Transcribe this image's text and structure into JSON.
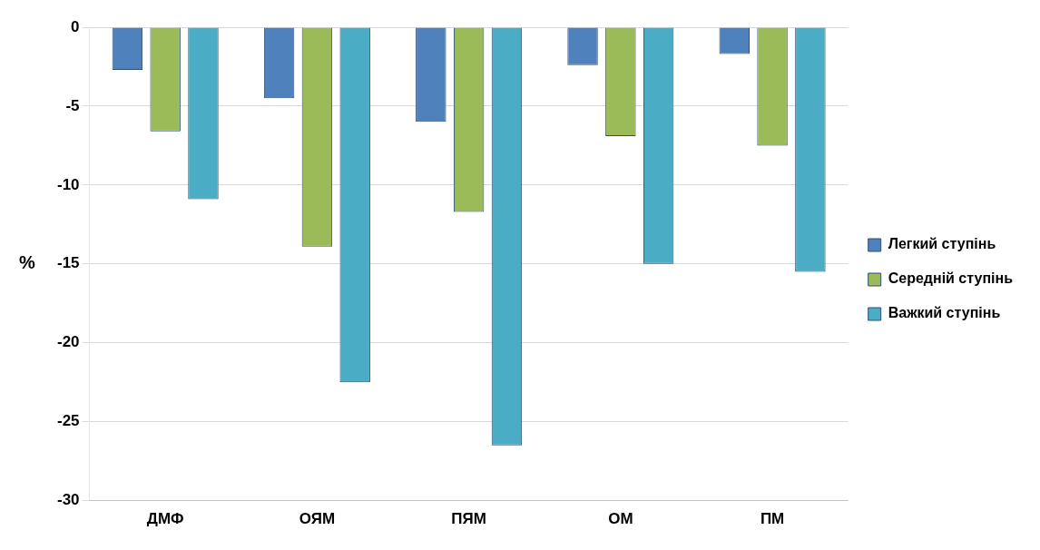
{
  "chart_data": {
    "type": "bar",
    "ylabel": "%",
    "categories": [
      "ДМФ",
      "ОЯМ",
      "ПЯМ",
      "ОМ",
      "ПМ"
    ],
    "series": [
      {
        "name": "Легкий ступінь",
        "color": "#4f81bd",
        "values": [
          -2.7,
          -4.5,
          -6.0,
          -2.4,
          -1.7
        ]
      },
      {
        "name": "Середній ступінь",
        "color": "#9bbb59",
        "values": [
          -6.6,
          -13.9,
          -11.7,
          -6.9,
          -7.5
        ]
      },
      {
        "name": "Важкий ступінь",
        "color": "#4bacc6",
        "values": [
          -10.9,
          -22.5,
          -26.5,
          -15.0,
          -15.5
        ]
      }
    ],
    "ylim": [
      -30,
      0
    ],
    "yticks": [
      -30,
      -25,
      -20,
      -15,
      -10,
      -5,
      0
    ],
    "grid": "y",
    "legend": "right"
  }
}
